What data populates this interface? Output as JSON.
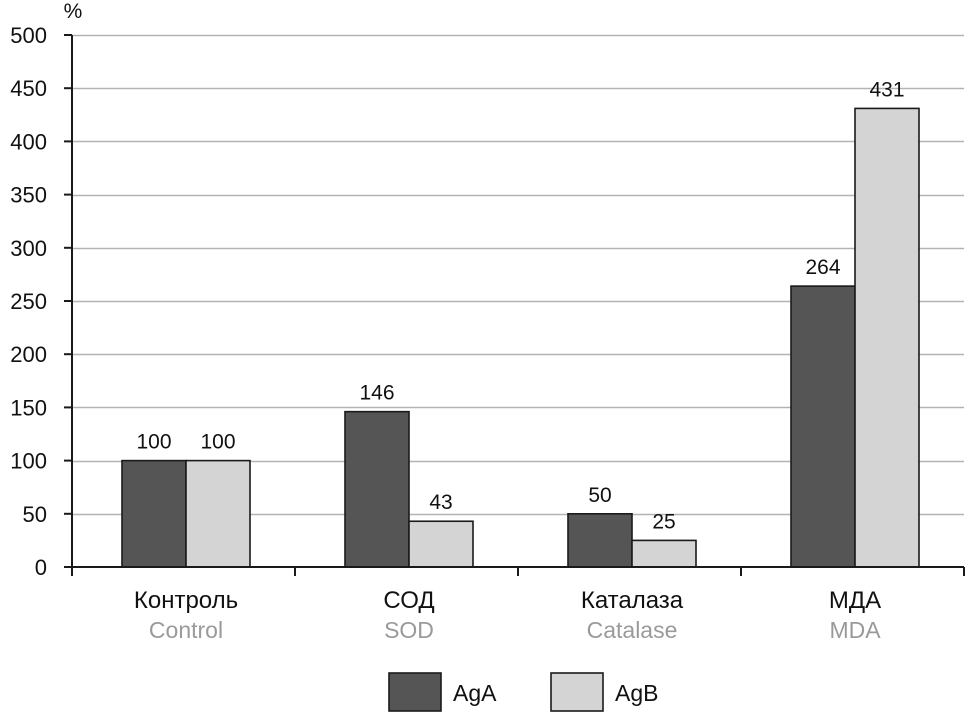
{
  "chart_data": {
    "type": "bar",
    "y_unit_label": "%",
    "ylim": [
      0,
      500
    ],
    "y_ticks": [
      0,
      50,
      100,
      150,
      200,
      250,
      300,
      350,
      400,
      450,
      500
    ],
    "grid": true,
    "legend_position": "bottom-center",
    "categories": [
      {
        "label": "Контроль",
        "sublabel": "Control"
      },
      {
        "label": "СОД",
        "sublabel": "SOD"
      },
      {
        "label": "Каталаза",
        "sublabel": "Catalase"
      },
      {
        "label": "МДА",
        "sublabel": "MDA"
      }
    ],
    "series": [
      {
        "name": "AgA",
        "color": "#555555",
        "values": [
          100,
          146,
          50,
          264
        ]
      },
      {
        "name": "AgB",
        "color": "#d4d4d4",
        "values": [
          100,
          43,
          25,
          431
        ]
      }
    ],
    "colors": {
      "gridline": "#b3b3b3",
      "axis": "#1a1a1a",
      "bar_stroke": "#1a1a1a",
      "sublabel": "#9a9a9a"
    }
  }
}
